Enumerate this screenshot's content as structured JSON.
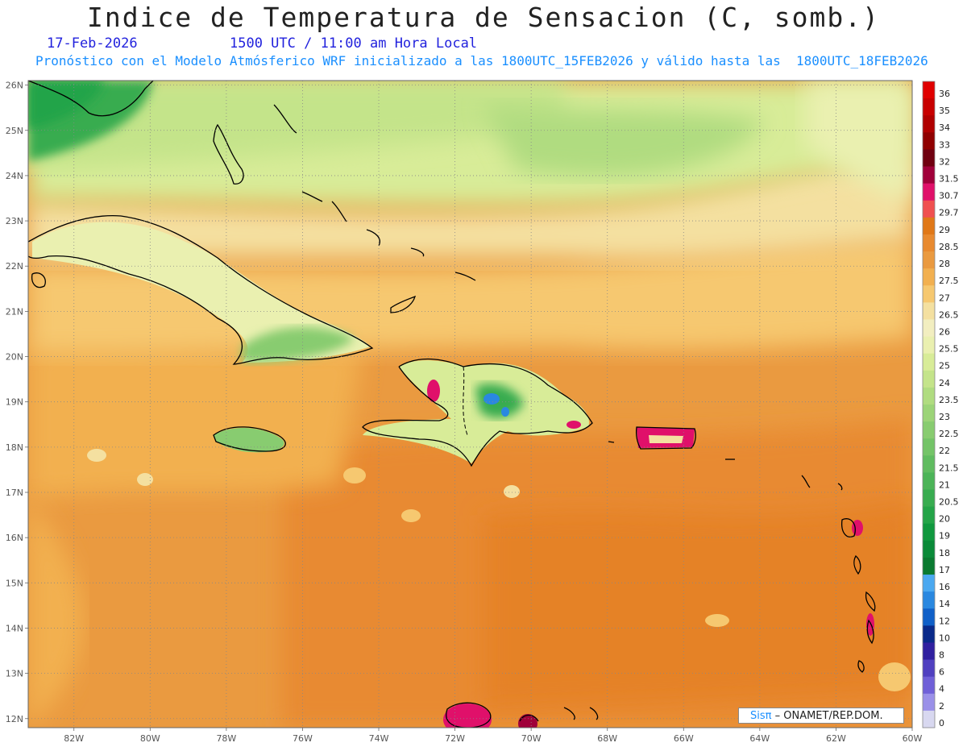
{
  "title": "Indice de Temperatura de Sensacion (C, somb.)",
  "date": "17-Feb-2026",
  "time": "1500 UTC / 11:00 am Hora Local",
  "forecast_note": "Pronóstico con el Modelo Atmósferico WRF inicializado a las 1800UTC_15FEB2026 y válido hasta las  1800UTC_18FEB2026",
  "credit": {
    "brand": "Sisπ",
    "text": "– ONAMET/REP.DOM."
  },
  "axes": {
    "lat_labels": [
      "26N",
      "25N",
      "24N",
      "23N",
      "22N",
      "21N",
      "20N",
      "19N",
      "18N",
      "17N",
      "16N",
      "15N",
      "14N",
      "13N",
      "12N"
    ],
    "lon_labels": [
      "82W",
      "80W",
      "78W",
      "76W",
      "74W",
      "72W",
      "70W",
      "68W",
      "66W",
      "64W",
      "62W",
      "60W"
    ]
  },
  "colorbar": {
    "labels": [
      "36",
      "35",
      "34",
      "33",
      "32",
      "31.5",
      "30.7",
      "29.7",
      "29",
      "28.5",
      "28",
      "27.5",
      "27",
      "26.5",
      "26",
      "25.5",
      "25",
      "24",
      "23.5",
      "23",
      "22.5",
      "22",
      "21.5",
      "21",
      "20.5",
      "20",
      "19",
      "18",
      "17",
      "16",
      "14",
      "12",
      "10",
      "8",
      "6",
      "4",
      "2",
      "0"
    ],
    "colors": [
      "#e00000",
      "#c80000",
      "#b00000",
      "#900000",
      "#700010",
      "#a0003a",
      "#e0106a",
      "#f05050",
      "#e07818",
      "#e88a30",
      "#ea9a40",
      "#f2b050",
      "#f6c870",
      "#f4e0a0",
      "#f2eec0",
      "#eaf0b0",
      "#d8ec98",
      "#c4e48a",
      "#b0dc80",
      "#9cd478",
      "#88cc70",
      "#74c468",
      "#60bc60",
      "#4cb458",
      "#38ac50",
      "#24a448",
      "#10983e",
      "#0a8a38",
      "#0a7a30",
      "#4aa8f0",
      "#2a88e0",
      "#1060c8",
      "#0a2a8a",
      "#3020a0",
      "#5040c0",
      "#7060d8",
      "#9a90e8",
      "#d8d8f0"
    ]
  },
  "map": {
    "region": "Caribe",
    "lon_range": [
      -83.2,
      -60
    ],
    "lat_range": [
      11.8,
      26.1
    ],
    "field": "heat index (C)"
  }
}
